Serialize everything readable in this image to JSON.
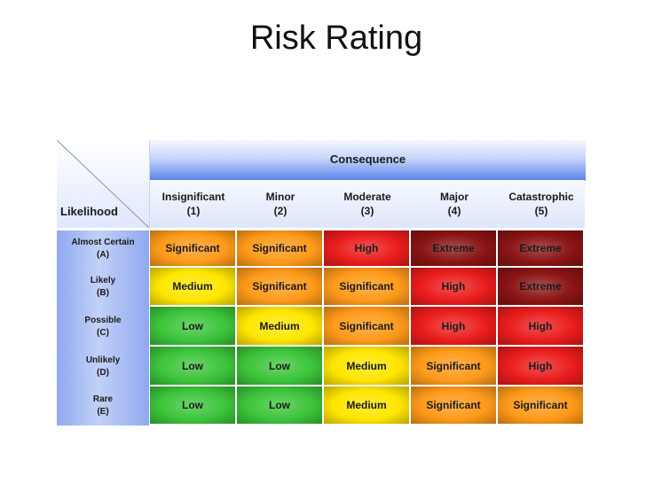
{
  "title": "Risk Rating",
  "matrix": {
    "consequence_label": "Consequence",
    "likelihood_label": "Likelihood",
    "columns": [
      {
        "name": "Insignificant",
        "code": "(1)"
      },
      {
        "name": "Minor",
        "code": "(2)"
      },
      {
        "name": "Moderate",
        "code": "(3)"
      },
      {
        "name": "Major",
        "code": "(4)"
      },
      {
        "name": "Catastrophic",
        "code": "(5)"
      }
    ],
    "rows": [
      {
        "name": "Almost Certain",
        "code": "(A)",
        "cells": [
          "Significant",
          "Significant",
          "High",
          "Extreme",
          "Extreme"
        ]
      },
      {
        "name": "Likely",
        "code": "(B)",
        "cells": [
          "Medium",
          "Significant",
          "Significant",
          "High",
          "Extreme"
        ]
      },
      {
        "name": "Possible",
        "code": "(C)",
        "cells": [
          "Low",
          "Medium",
          "Significant",
          "High",
          "High"
        ]
      },
      {
        "name": "Unlikely",
        "code": "(D)",
        "cells": [
          "Low",
          "Low",
          "Medium",
          "Significant",
          "High"
        ]
      },
      {
        "name": "Rare",
        "code": "(E)",
        "cells": [
          "Low",
          "Low",
          "Medium",
          "Significant",
          "Significant"
        ]
      }
    ],
    "rating_colors": {
      "Low": "#3cc43a",
      "Medium": "#ffe600",
      "Significant": "#ff9a1a",
      "High": "#ea1c1c",
      "Extreme": "#8a1414"
    }
  }
}
